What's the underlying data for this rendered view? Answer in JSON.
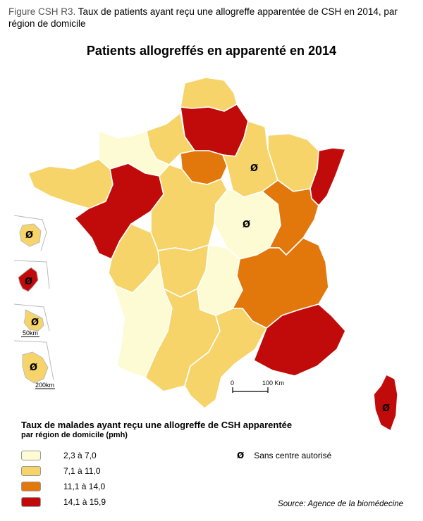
{
  "figure": {
    "label": "Figure CSH R3.",
    "caption": " Taux de patients ayant reçu une allogreffe apparentée de CSH en 2014, par région de domicile"
  },
  "map": {
    "title": "Patients allogreffés en apparenté en 2014",
    "no_center_symbol": "Ø",
    "scale_start": "0",
    "scale_end": "100 Km",
    "inset_scale_guadeloupe": "50km",
    "inset_scale_guyane": "200km",
    "colors": {
      "class1": "#fdfbd3",
      "class2": "#f6d46a",
      "class3": "#e2780c",
      "class4": "#c10b0b"
    }
  },
  "legend": {
    "title": "Taux de malades ayant reçu une allogreffe de CSH apparentée",
    "subtitle": "par région de domicile (pmh)",
    "items": [
      {
        "label": "2,3 à 7,0"
      },
      {
        "label": "7,1 à 11,0"
      },
      {
        "label": "11,1 à 14,0"
      },
      {
        "label": "14,1 à 15,9"
      }
    ],
    "no_center_label": "Sans centre autorisé"
  },
  "source": "Source: Agence de la biomédecine"
}
